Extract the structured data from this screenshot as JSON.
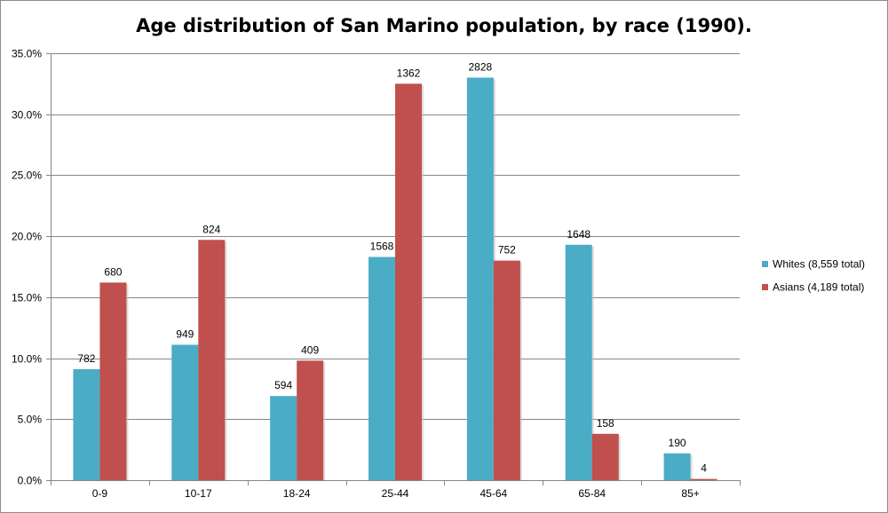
{
  "chart_data": {
    "type": "bar",
    "title": "Age distribution of San Marino population, by race (1990).",
    "xlabel": "",
    "ylabel": "",
    "categories": [
      "0-9",
      "10-17",
      "18-24",
      "25-44",
      "45-64",
      "65-84",
      "85+"
    ],
    "ylim": [
      0,
      35
    ],
    "yticks": [
      0,
      5,
      10,
      15,
      20,
      25,
      30,
      35
    ],
    "ytick_labels": [
      "0.0%",
      "5.0%",
      "10.0%",
      "15.0%",
      "20.0%",
      "25.0%",
      "30.0%",
      "35.0%"
    ],
    "grid": true,
    "legend_position": "right",
    "series": [
      {
        "name": "Whites (8,559 total)",
        "color": "#4bacc6",
        "values": [
          9.1,
          11.1,
          6.9,
          18.3,
          33.0,
          19.3,
          2.2
        ],
        "labels": [
          "782",
          "949",
          "594",
          "1568",
          "2828",
          "1648",
          "190"
        ]
      },
      {
        "name": "Asians (4,189 total)",
        "color": "#c0504d",
        "values": [
          16.2,
          19.7,
          9.8,
          32.5,
          18.0,
          3.8,
          0.1
        ],
        "labels": [
          "680",
          "824",
          "409",
          "1362",
          "752",
          "158",
          "4"
        ]
      }
    ]
  }
}
